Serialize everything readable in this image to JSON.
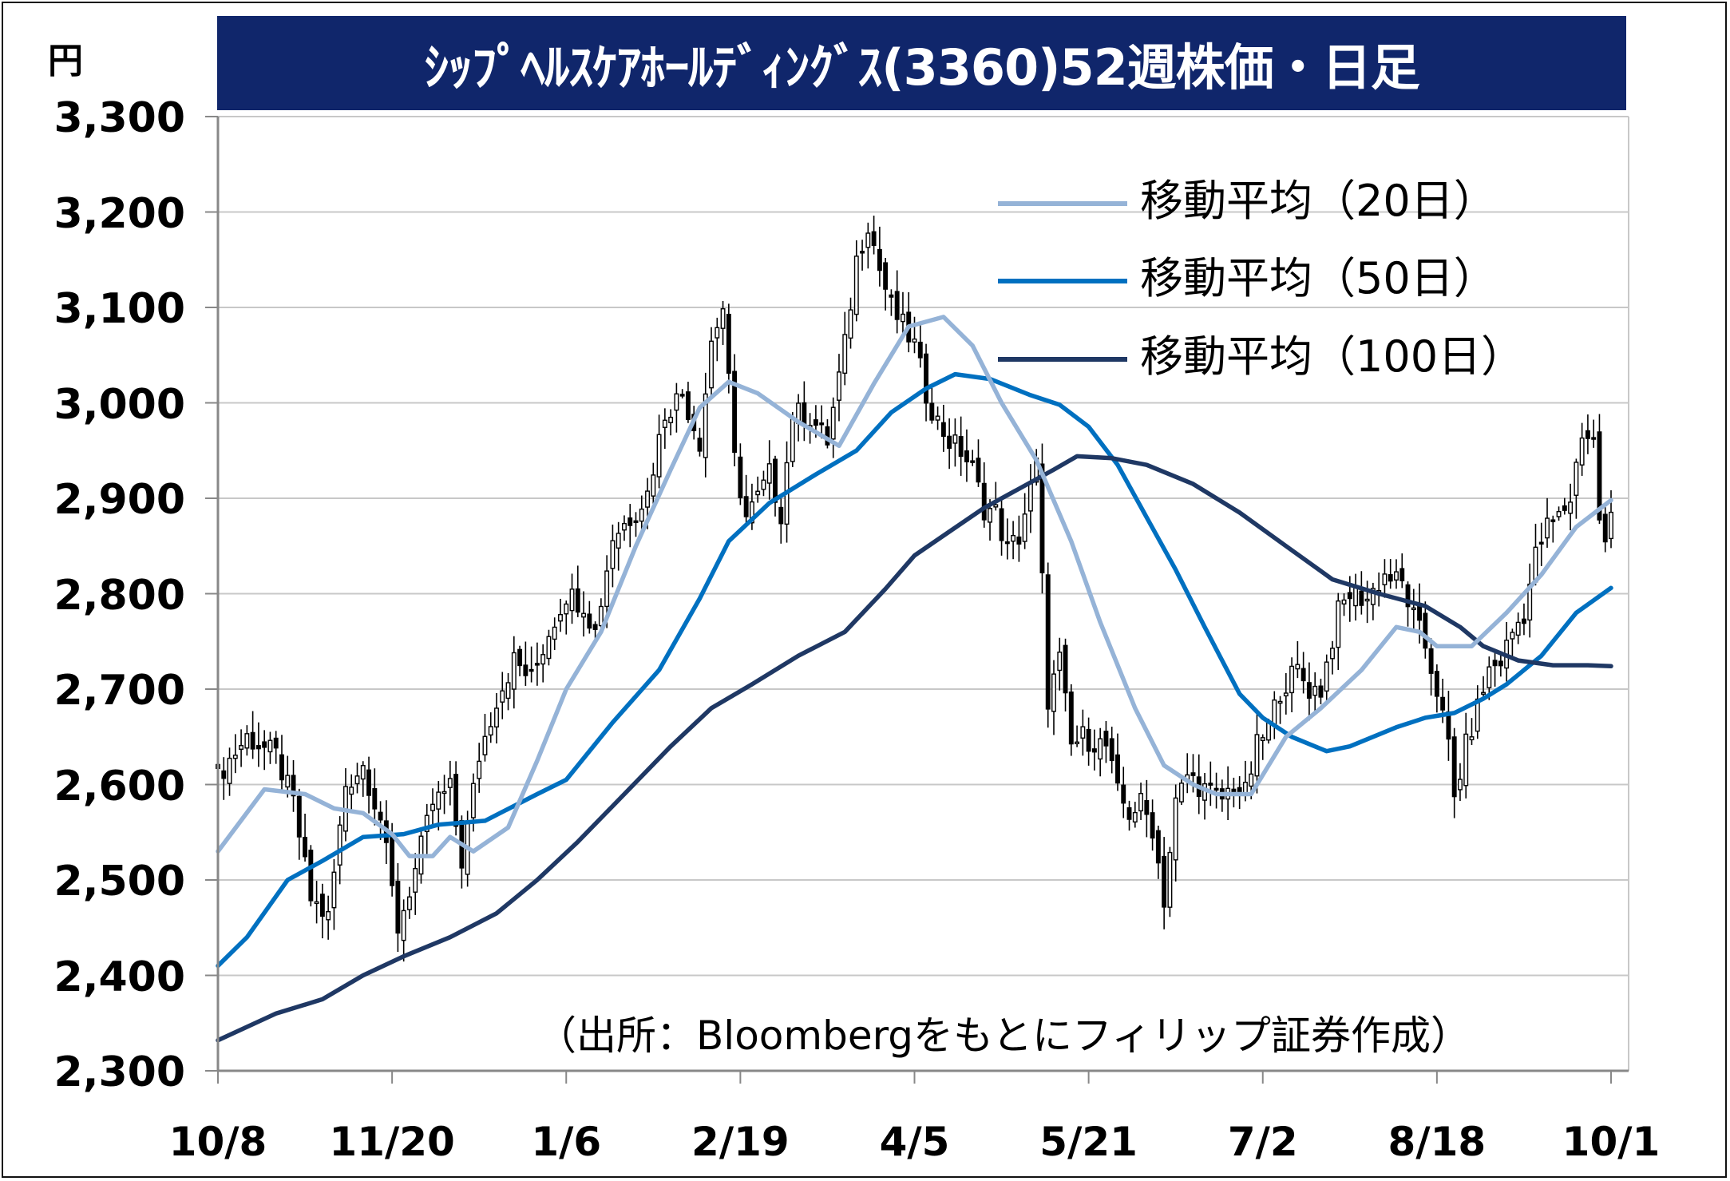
{
  "chart_data": {
    "type": "candlestick",
    "title": "ｼｯﾌﾟﾍﾙｽｹｱﾎｰﾙﾃﾞｨﾝｸﾞｽ(3360)52週株価・日足",
    "unit": "円",
    "source": "（出所：Bloombergをもとにフィリップ証券作成）",
    "ylim": [
      2300,
      3300
    ],
    "yticks": [
      "3,300",
      "3,200",
      "3,100",
      "3,000",
      "2,900",
      "2,800",
      "2,700",
      "2,600",
      "2,500",
      "2,400",
      "2,300"
    ],
    "ytick_values": [
      3300,
      3200,
      3100,
      3000,
      2900,
      2800,
      2700,
      2600,
      2500,
      2400,
      2300
    ],
    "xtick_labels": [
      "10/8",
      "11/20",
      "1/6",
      "2/19",
      "4/5",
      "5/21",
      "7/2",
      "8/18",
      "10/1"
    ],
    "xtick_index": [
      0,
      30,
      60,
      90,
      120,
      150,
      180,
      210,
      240
    ],
    "n_days": 241,
    "grid": true,
    "legend_position": "top-right",
    "series": [
      {
        "name": "移動平均（20日）",
        "color": "#95b3d7",
        "points": [
          [
            0,
            2530
          ],
          [
            8,
            2595
          ],
          [
            15,
            2590
          ],
          [
            20,
            2575
          ],
          [
            25,
            2570
          ],
          [
            30,
            2548
          ],
          [
            33,
            2525
          ],
          [
            37,
            2525
          ],
          [
            40,
            2545
          ],
          [
            44,
            2530
          ],
          [
            50,
            2555
          ],
          [
            55,
            2625
          ],
          [
            60,
            2700
          ],
          [
            66,
            2760
          ],
          [
            72,
            2850
          ],
          [
            78,
            2930
          ],
          [
            83,
            2995
          ],
          [
            88,
            3022
          ],
          [
            93,
            3010
          ],
          [
            100,
            2980
          ],
          [
            107,
            2955
          ],
          [
            113,
            3020
          ],
          [
            119,
            3080
          ],
          [
            125,
            3090
          ],
          [
            130,
            3060
          ],
          [
            135,
            3000
          ],
          [
            141,
            2940
          ],
          [
            147,
            2855
          ],
          [
            152,
            2770
          ],
          [
            158,
            2680
          ],
          [
            163,
            2620
          ],
          [
            168,
            2600
          ],
          [
            172,
            2590
          ],
          [
            178,
            2590
          ],
          [
            184,
            2650
          ],
          [
            190,
            2680
          ],
          [
            197,
            2720
          ],
          [
            203,
            2765
          ],
          [
            207,
            2760
          ],
          [
            210,
            2745
          ],
          [
            216,
            2745
          ],
          [
            222,
            2780
          ],
          [
            228,
            2820
          ],
          [
            234,
            2870
          ],
          [
            240,
            2898
          ]
        ]
      },
      {
        "name": "移動平均（50日）",
        "color": "#0070c0",
        "points": [
          [
            0,
            2410
          ],
          [
            5,
            2440
          ],
          [
            12,
            2500
          ],
          [
            18,
            2520
          ],
          [
            25,
            2545
          ],
          [
            32,
            2548
          ],
          [
            38,
            2558
          ],
          [
            46,
            2562
          ],
          [
            55,
            2590
          ],
          [
            60,
            2605
          ],
          [
            68,
            2665
          ],
          [
            76,
            2720
          ],
          [
            83,
            2795
          ],
          [
            88,
            2855
          ],
          [
            95,
            2895
          ],
          [
            103,
            2925
          ],
          [
            110,
            2950
          ],
          [
            116,
            2990
          ],
          [
            122,
            3015
          ],
          [
            127,
            3030
          ],
          [
            133,
            3025
          ],
          [
            140,
            3008
          ],
          [
            145,
            2998
          ],
          [
            150,
            2975
          ],
          [
            155,
            2935
          ],
          [
            160,
            2880
          ],
          [
            165,
            2825
          ],
          [
            170,
            2765
          ],
          [
            176,
            2695
          ],
          [
            180,
            2670
          ],
          [
            185,
            2650
          ],
          [
            191,
            2635
          ],
          [
            195,
            2640
          ],
          [
            203,
            2660
          ],
          [
            208,
            2670
          ],
          [
            213,
            2675
          ],
          [
            218,
            2690
          ],
          [
            222,
            2705
          ],
          [
            228,
            2735
          ],
          [
            234,
            2780
          ],
          [
            240,
            2806
          ]
        ]
      },
      {
        "name": "移動平均（100日）",
        "color": "#1f3864",
        "points": [
          [
            0,
            2332
          ],
          [
            10,
            2360
          ],
          [
            18,
            2375
          ],
          [
            25,
            2400
          ],
          [
            32,
            2420
          ],
          [
            40,
            2440
          ],
          [
            48,
            2465
          ],
          [
            55,
            2500
          ],
          [
            62,
            2540
          ],
          [
            70,
            2590
          ],
          [
            78,
            2640
          ],
          [
            85,
            2680
          ],
          [
            92,
            2705
          ],
          [
            100,
            2735
          ],
          [
            108,
            2760
          ],
          [
            115,
            2805
          ],
          [
            120,
            2840
          ],
          [
            126,
            2865
          ],
          [
            132,
            2890
          ],
          [
            138,
            2910
          ],
          [
            144,
            2930
          ],
          [
            148,
            2944
          ],
          [
            154,
            2942
          ],
          [
            160,
            2935
          ],
          [
            168,
            2915
          ],
          [
            176,
            2885
          ],
          [
            184,
            2850
          ],
          [
            192,
            2815
          ],
          [
            200,
            2800
          ],
          [
            208,
            2787
          ],
          [
            214,
            2765
          ],
          [
            218,
            2745
          ],
          [
            224,
            2730
          ],
          [
            230,
            2725
          ],
          [
            236,
            2725
          ],
          [
            240,
            2724
          ]
        ]
      }
    ],
    "close_path": [
      [
        0,
        2610
      ],
      [
        5,
        2650
      ],
      [
        10,
        2630
      ],
      [
        13,
        2580
      ],
      [
        16,
        2480
      ],
      [
        19,
        2460
      ],
      [
        22,
        2600
      ],
      [
        25,
        2620
      ],
      [
        28,
        2565
      ],
      [
        31,
        2450
      ],
      [
        34,
        2510
      ],
      [
        37,
        2580
      ],
      [
        40,
        2595
      ],
      [
        42,
        2520
      ],
      [
        45,
        2630
      ],
      [
        48,
        2690
      ],
      [
        51,
        2730
      ],
      [
        54,
        2710
      ],
      [
        57,
        2760
      ],
      [
        60,
        2800
      ],
      [
        63,
        2790
      ],
      [
        65,
        2760
      ],
      [
        68,
        2860
      ],
      [
        71,
        2880
      ],
      [
        74,
        2905
      ],
      [
        77,
        2990
      ],
      [
        80,
        3010
      ],
      [
        83,
        2960
      ],
      [
        85,
        3065
      ],
      [
        87,
        3100
      ],
      [
        89,
        2940
      ],
      [
        91,
        2880
      ],
      [
        93,
        2900
      ],
      [
        95,
        2925
      ],
      [
        97,
        2885
      ],
      [
        99,
        2990
      ],
      [
        102,
        2985
      ],
      [
        105,
        2960
      ],
      [
        108,
        3060
      ],
      [
        110,
        3150
      ],
      [
        112,
        3190
      ],
      [
        114,
        3140
      ],
      [
        116,
        3100
      ],
      [
        118,
        3080
      ],
      [
        120,
        3060
      ],
      [
        122,
        3010
      ],
      [
        124,
        2980
      ],
      [
        126,
        2960
      ],
      [
        128,
        2950
      ],
      [
        130,
        2930
      ],
      [
        132,
        2890
      ],
      [
        134,
        2885
      ],
      [
        136,
        2845
      ],
      [
        138,
        2860
      ],
      [
        141,
        2935
      ],
      [
        143,
        2690
      ],
      [
        145,
        2730
      ],
      [
        147,
        2640
      ],
      [
        149,
        2650
      ],
      [
        151,
        2645
      ],
      [
        153,
        2640
      ],
      [
        155,
        2590
      ],
      [
        157,
        2570
      ],
      [
        159,
        2580
      ],
      [
        161,
        2555
      ],
      [
        163,
        2480
      ],
      [
        165,
        2580
      ],
      [
        167,
        2610
      ],
      [
        169,
        2600
      ],
      [
        171,
        2590
      ],
      [
        173,
        2585
      ],
      [
        175,
        2600
      ],
      [
        177,
        2590
      ],
      [
        179,
        2640
      ],
      [
        181,
        2660
      ],
      [
        183,
        2700
      ],
      [
        186,
        2720
      ],
      [
        188,
        2700
      ],
      [
        190,
        2700
      ],
      [
        193,
        2780
      ],
      [
        195,
        2800
      ],
      [
        198,
        2795
      ],
      [
        201,
        2820
      ],
      [
        204,
        2810
      ],
      [
        206,
        2775
      ],
      [
        208,
        2745
      ],
      [
        210,
        2700
      ],
      [
        212,
        2640
      ],
      [
        213,
        2585
      ],
      [
        215,
        2640
      ],
      [
        217,
        2680
      ],
      [
        219,
        2720
      ],
      [
        221,
        2730
      ],
      [
        223,
        2760
      ],
      [
        225,
        2780
      ],
      [
        227,
        2840
      ],
      [
        229,
        2870
      ],
      [
        231,
        2880
      ],
      [
        233,
        2900
      ],
      [
        235,
        2970
      ],
      [
        237,
        2960
      ],
      [
        238,
        2880
      ],
      [
        239,
        2850
      ],
      [
        240,
        2880
      ]
    ]
  }
}
